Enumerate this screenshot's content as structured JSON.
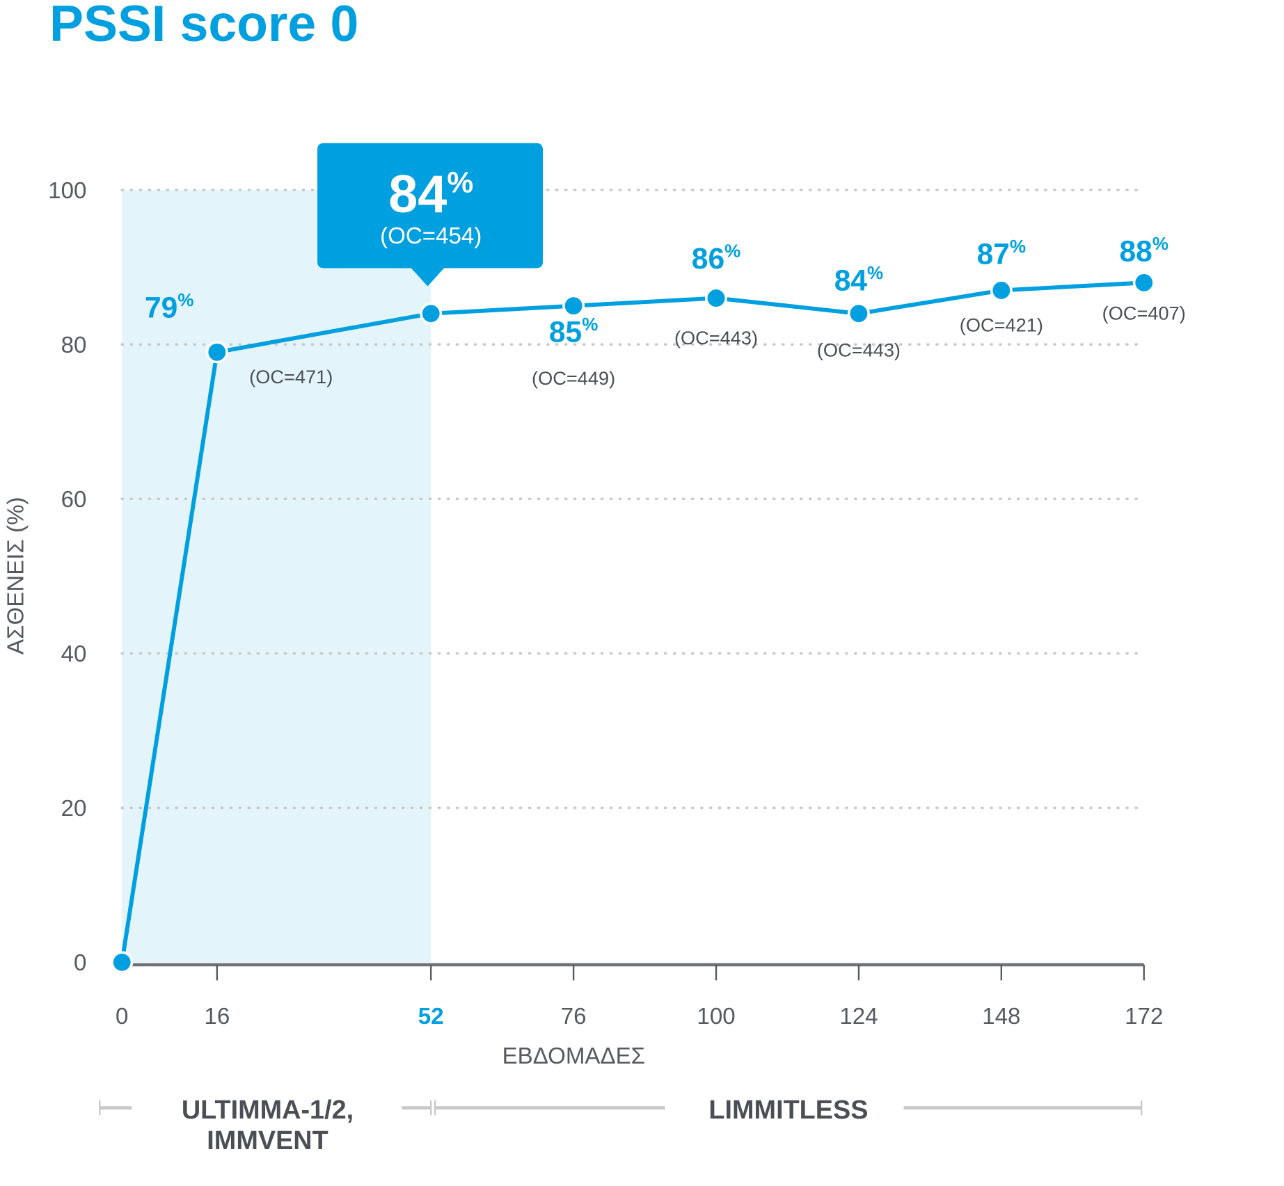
{
  "chart_data": {
    "type": "line",
    "title": "PSSI score 0",
    "xlabel": "ΕΒΔΟΜΑΔΕΣ",
    "ylabel": "ΑΣΘΕΝΕΙΣ (%)",
    "ylim": [
      0,
      100
    ],
    "xlim": [
      0,
      172
    ],
    "yticks": [
      "0",
      "20",
      "40",
      "60",
      "80",
      "100"
    ],
    "xticks": [
      "0",
      "16",
      "52",
      "76",
      "100",
      "124",
      "148",
      "172"
    ],
    "highlight_xtick": "52",
    "grid": "horizontal dotted",
    "x": [
      0,
      16,
      52,
      76,
      100,
      124,
      148,
      172
    ],
    "values": [
      0,
      79,
      84,
      85,
      86,
      84,
      87,
      88
    ],
    "labels": [
      "",
      "79",
      "84",
      "85",
      "86",
      "84",
      "87",
      "88"
    ],
    "percent_sign": "%",
    "oc_labels": [
      "",
      "(OC=471)",
      "(OC=454)",
      "(OC=449)",
      "(OC=443)",
      "(OC=443)",
      "(OC=421)",
      "(OC=407)"
    ],
    "callout": {
      "value": "84",
      "oc": "(OC=454)",
      "x": 52
    },
    "shaded_region": {
      "from": 0,
      "to": 52
    },
    "periods": [
      {
        "line1": "ULTIMMA-1/2,",
        "line2": "IMMVENT",
        "from": 0,
        "to": 52
      },
      {
        "line1": "LIMMITLESS",
        "from": 52,
        "to": 172
      }
    ],
    "colors": {
      "line": "#009fdf",
      "shade": "#e3f4fb",
      "text": "#4a4f55",
      "grid": "#c8c8c8"
    }
  }
}
